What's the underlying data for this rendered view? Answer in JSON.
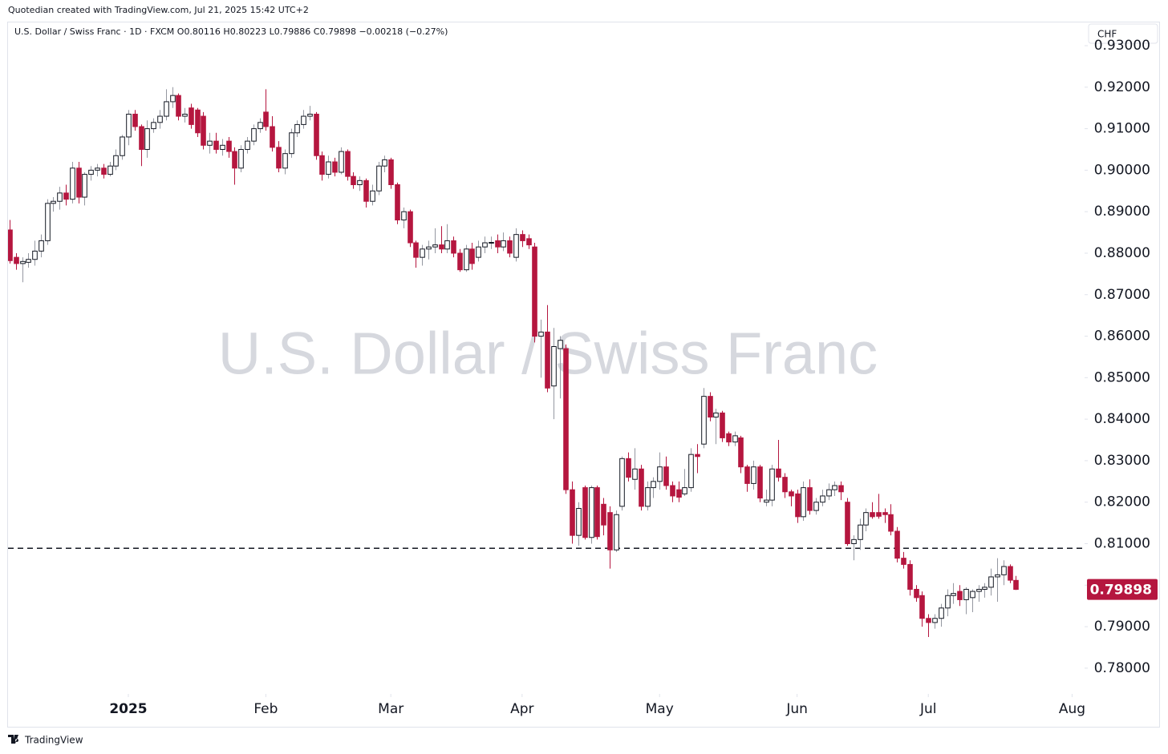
{
  "credit": "Quotedian created with TradingView.com, Jul 21, 2025 15:42 UTC+2",
  "footer": "TradingView",
  "chart_data": {
    "type": "candlestick",
    "title": "U.S. Dollar / Swiss Franc",
    "legend": "U.S. Dollar / Swiss Franc · 1D · FXCM  O0.80116  H0.80223  L0.79886  C0.79898  −0.00218 (−0.27%)",
    "currency": "CHF",
    "up_color": "#ffffff",
    "down_color": "#b5163f",
    "level": 0.8089,
    "candles": [
      [
        0.8856,
        0.888,
        0.8775,
        0.8782
      ],
      [
        0.879,
        0.88,
        0.876,
        0.8775
      ],
      [
        0.8775,
        0.879,
        0.873,
        0.878
      ],
      [
        0.8778,
        0.88,
        0.8765,
        0.8785
      ],
      [
        0.8785,
        0.883,
        0.877,
        0.8805
      ],
      [
        0.8805,
        0.8845,
        0.879,
        0.883
      ],
      [
        0.883,
        0.893,
        0.882,
        0.892
      ],
      [
        0.892,
        0.8935,
        0.89,
        0.8925
      ],
      [
        0.8925,
        0.896,
        0.8905,
        0.8945
      ],
      [
        0.8945,
        0.8965,
        0.8915,
        0.893
      ],
      [
        0.893,
        0.902,
        0.892,
        0.9005
      ],
      [
        0.9005,
        0.902,
        0.892,
        0.8935
      ],
      [
        0.8935,
        0.8995,
        0.8915,
        0.899
      ],
      [
        0.899,
        0.901,
        0.8975,
        0.9
      ],
      [
        0.9,
        0.9015,
        0.8985,
        0.9005
      ],
      [
        0.9005,
        0.9015,
        0.898,
        0.899
      ],
      [
        0.899,
        0.902,
        0.8985,
        0.901
      ],
      [
        0.901,
        0.905,
        0.9,
        0.9035
      ],
      [
        0.9035,
        0.9085,
        0.9025,
        0.908
      ],
      [
        0.908,
        0.9145,
        0.906,
        0.9135
      ],
      [
        0.9135,
        0.9145,
        0.9095,
        0.9105
      ],
      [
        0.9105,
        0.911,
        0.901,
        0.905
      ],
      [
        0.905,
        0.912,
        0.903,
        0.91
      ],
      [
        0.91,
        0.9125,
        0.909,
        0.9115
      ],
      [
        0.9115,
        0.9145,
        0.91,
        0.913
      ],
      [
        0.913,
        0.9195,
        0.912,
        0.9165
      ],
      [
        0.9165,
        0.92,
        0.915,
        0.918
      ],
      [
        0.918,
        0.9185,
        0.912,
        0.913
      ],
      [
        0.913,
        0.915,
        0.9115,
        0.9135
      ],
      [
        0.915,
        0.916,
        0.91,
        0.911
      ],
      [
        0.9145,
        0.915,
        0.908,
        0.909
      ],
      [
        0.913,
        0.914,
        0.905,
        0.906
      ],
      [
        0.906,
        0.909,
        0.904,
        0.907
      ],
      [
        0.907,
        0.909,
        0.904,
        0.905
      ],
      [
        0.905,
        0.9075,
        0.9035,
        0.906
      ],
      [
        0.907,
        0.908,
        0.903,
        0.9045
      ],
      [
        0.9045,
        0.9055,
        0.8965,
        0.9005
      ],
      [
        0.9005,
        0.906,
        0.8995,
        0.905
      ],
      [
        0.905,
        0.908,
        0.904,
        0.907
      ],
      [
        0.907,
        0.911,
        0.906,
        0.91
      ],
      [
        0.91,
        0.9125,
        0.909,
        0.9115
      ],
      [
        0.914,
        0.9195,
        0.9095,
        0.9105
      ],
      [
        0.9105,
        0.913,
        0.9045,
        0.9055
      ],
      [
        0.9055,
        0.907,
        0.8995,
        0.9005
      ],
      [
        0.9005,
        0.905,
        0.899,
        0.904
      ],
      [
        0.904,
        0.91,
        0.903,
        0.909
      ],
      [
        0.909,
        0.912,
        0.908,
        0.911
      ],
      [
        0.911,
        0.9145,
        0.91,
        0.913
      ],
      [
        0.913,
        0.9155,
        0.912,
        0.9135
      ],
      [
        0.9135,
        0.914,
        0.9025,
        0.9035
      ],
      [
        0.9035,
        0.9045,
        0.8975,
        0.899
      ],
      [
        0.899,
        0.9035,
        0.898,
        0.902
      ],
      [
        0.902,
        0.903,
        0.8985,
        0.8995
      ],
      [
        0.8995,
        0.9055,
        0.899,
        0.9045
      ],
      [
        0.9045,
        0.905,
        0.8975,
        0.8985
      ],
      [
        0.8985,
        0.8995,
        0.8955,
        0.8965
      ],
      [
        0.8965,
        0.8985,
        0.895,
        0.8975
      ],
      [
        0.8975,
        0.898,
        0.891,
        0.8925
      ],
      [
        0.8925,
        0.8965,
        0.8915,
        0.895
      ],
      [
        0.895,
        0.902,
        0.894,
        0.901
      ],
      [
        0.901,
        0.9035,
        0.8995,
        0.9025
      ],
      [
        0.9025,
        0.903,
        0.8955,
        0.8965
      ],
      [
        0.8965,
        0.897,
        0.887,
        0.888
      ],
      [
        0.888,
        0.891,
        0.886,
        0.89
      ],
      [
        0.89,
        0.8905,
        0.8815,
        0.8825
      ],
      [
        0.8825,
        0.883,
        0.8765,
        0.879
      ],
      [
        0.879,
        0.882,
        0.877,
        0.881
      ],
      [
        0.881,
        0.883,
        0.8785,
        0.8815
      ],
      [
        0.8815,
        0.886,
        0.88,
        0.882
      ],
      [
        0.882,
        0.8865,
        0.88,
        0.881
      ],
      [
        0.881,
        0.887,
        0.88,
        0.883
      ],
      [
        0.883,
        0.884,
        0.879,
        0.88
      ],
      [
        0.88,
        0.881,
        0.8755,
        0.876
      ],
      [
        0.876,
        0.882,
        0.8755,
        0.881
      ],
      [
        0.881,
        0.8825,
        0.876,
        0.8775
      ],
      [
        0.879,
        0.883,
        0.878,
        0.8815
      ],
      [
        0.8815,
        0.884,
        0.88,
        0.8825
      ],
      [
        0.8825,
        0.884,
        0.881,
        0.8826
      ],
      [
        0.883,
        0.8845,
        0.88,
        0.8815
      ],
      [
        0.8815,
        0.885,
        0.8805,
        0.883
      ],
      [
        0.883,
        0.884,
        0.879,
        0.88
      ],
      [
        0.879,
        0.886,
        0.878,
        0.8845
      ],
      [
        0.8845,
        0.8855,
        0.8815,
        0.883
      ],
      [
        0.8835,
        0.8845,
        0.881,
        0.882
      ],
      [
        0.8815,
        0.8825,
        0.8585,
        0.86
      ],
      [
        0.86,
        0.864,
        0.85,
        0.861
      ],
      [
        0.861,
        0.8675,
        0.8465,
        0.8475
      ],
      [
        0.848,
        0.862,
        0.84,
        0.8575
      ],
      [
        0.857,
        0.86,
        0.845,
        0.859
      ],
      [
        0.857,
        0.858,
        0.822,
        0.823
      ],
      [
        0.823,
        0.825,
        0.81,
        0.812
      ],
      [
        0.812,
        0.82,
        0.8095,
        0.8185
      ],
      [
        0.8235,
        0.824,
        0.811,
        0.8115
      ],
      [
        0.8115,
        0.824,
        0.81,
        0.8235
      ],
      [
        0.8235,
        0.824,
        0.811,
        0.8117
      ],
      [
        0.8195,
        0.821,
        0.812,
        0.8145
      ],
      [
        0.8175,
        0.819,
        0.804,
        0.8085
      ],
      [
        0.8085,
        0.818,
        0.808,
        0.817
      ],
      [
        0.819,
        0.831,
        0.818,
        0.8305
      ],
      [
        0.8305,
        0.832,
        0.825,
        0.826
      ],
      [
        0.8255,
        0.833,
        0.823,
        0.828
      ],
      [
        0.828,
        0.829,
        0.818,
        0.819
      ],
      [
        0.819,
        0.825,
        0.818,
        0.8235
      ],
      [
        0.8235,
        0.826,
        0.821,
        0.825
      ],
      [
        0.825,
        0.832,
        0.823,
        0.8285
      ],
      [
        0.8285,
        0.831,
        0.823,
        0.824
      ],
      [
        0.824,
        0.825,
        0.82,
        0.8215
      ],
      [
        0.823,
        0.825,
        0.82,
        0.8212
      ],
      [
        0.822,
        0.828,
        0.8215,
        0.8235
      ],
      [
        0.8235,
        0.833,
        0.8225,
        0.8315
      ],
      [
        0.8315,
        0.834,
        0.827,
        0.831
      ],
      [
        0.834,
        0.8475,
        0.833,
        0.8455
      ],
      [
        0.8455,
        0.8465,
        0.8395,
        0.8405
      ],
      [
        0.8405,
        0.8425,
        0.834,
        0.8415
      ],
      [
        0.8415,
        0.842,
        0.8345,
        0.8355
      ],
      [
        0.8365,
        0.837,
        0.8335,
        0.8345
      ],
      [
        0.8345,
        0.837,
        0.8335,
        0.836
      ],
      [
        0.8355,
        0.836,
        0.827,
        0.8285
      ],
      [
        0.8285,
        0.829,
        0.8225,
        0.8245
      ],
      [
        0.8245,
        0.83,
        0.823,
        0.8285
      ],
      [
        0.8285,
        0.829,
        0.82,
        0.821
      ],
      [
        0.82,
        0.823,
        0.819,
        0.8205
      ],
      [
        0.8205,
        0.829,
        0.819,
        0.828
      ],
      [
        0.828,
        0.835,
        0.825,
        0.826
      ],
      [
        0.826,
        0.827,
        0.821,
        0.8225
      ],
      [
        0.8225,
        0.823,
        0.819,
        0.8215
      ],
      [
        0.822,
        0.823,
        0.815,
        0.8165
      ],
      [
        0.8165,
        0.825,
        0.8155,
        0.8235
      ],
      [
        0.8235,
        0.8255,
        0.817,
        0.818
      ],
      [
        0.818,
        0.821,
        0.817,
        0.82
      ],
      [
        0.82,
        0.823,
        0.819,
        0.8215
      ],
      [
        0.8215,
        0.8245,
        0.8205,
        0.823
      ],
      [
        0.823,
        0.825,
        0.8215,
        0.824
      ],
      [
        0.824,
        0.825,
        0.8205,
        0.8225
      ],
      [
        0.82,
        0.821,
        0.8095,
        0.81
      ],
      [
        0.81,
        0.812,
        0.806,
        0.811
      ],
      [
        0.811,
        0.816,
        0.8085,
        0.8145
      ],
      [
        0.8145,
        0.8185,
        0.813,
        0.8175
      ],
      [
        0.8175,
        0.82,
        0.816,
        0.8165
      ],
      [
        0.8175,
        0.822,
        0.816,
        0.8166
      ],
      [
        0.8175,
        0.8185,
        0.815,
        0.817
      ],
      [
        0.817,
        0.8195,
        0.812,
        0.813
      ],
      [
        0.813,
        0.814,
        0.8055,
        0.8065
      ],
      [
        0.8065,
        0.808,
        0.804,
        0.805
      ],
      [
        0.805,
        0.806,
        0.7975,
        0.799
      ],
      [
        0.799,
        0.8,
        0.796,
        0.797
      ],
      [
        0.7975,
        0.7985,
        0.79,
        0.792
      ],
      [
        0.792,
        0.793,
        0.7875,
        0.791
      ],
      [
        0.791,
        0.793,
        0.7895,
        0.792
      ],
      [
        0.792,
        0.7955,
        0.79,
        0.7945
      ],
      [
        0.7945,
        0.799,
        0.7925,
        0.7975
      ],
      [
        0.7975,
        0.8005,
        0.7955,
        0.798
      ],
      [
        0.7985,
        0.8,
        0.795,
        0.7965
      ],
      [
        0.7965,
        0.7995,
        0.793,
        0.799
      ],
      [
        0.797,
        0.799,
        0.7935,
        0.7985
      ],
      [
        0.7985,
        0.8,
        0.796,
        0.799
      ],
      [
        0.799,
        0.8005,
        0.797,
        0.7995
      ],
      [
        0.7995,
        0.804,
        0.7975,
        0.802
      ],
      [
        0.802,
        0.8065,
        0.796,
        0.8025
      ],
      [
        0.8025,
        0.806,
        0.8,
        0.8045
      ],
      [
        0.8045,
        0.805,
        0.8005,
        0.8012
      ],
      [
        0.80116,
        0.80223,
        0.79886,
        0.79898
      ]
    ],
    "xlim": [
      -0.25,
      172
    ],
    "xticks": [
      {
        "value": 19,
        "label": "2025"
      },
      {
        "value": 41,
        "label": "Feb"
      },
      {
        "value": 61,
        "label": "Mar"
      },
      {
        "value": 82,
        "label": "Apr"
      },
      {
        "value": 104,
        "label": "May"
      },
      {
        "value": 126,
        "label": "Jun"
      },
      {
        "value": 147,
        "label": "Jul"
      },
      {
        "value": 170,
        "label": "Aug"
      }
    ],
    "ylim": [
      0.7738,
      0.9356
    ],
    "yticks": [
      {
        "value": 0.78,
        "label": "0.78000"
      },
      {
        "value": 0.79,
        "label": "0.79000"
      },
      {
        "value": 0.8,
        "label": "0.80000"
      },
      {
        "value": 0.81,
        "label": "0.81000"
      },
      {
        "value": 0.82,
        "label": "0.82000"
      },
      {
        "value": 0.83,
        "label": "0.83000"
      },
      {
        "value": 0.84,
        "label": "0.84000"
      },
      {
        "value": 0.85,
        "label": "0.85000"
      },
      {
        "value": 0.86,
        "label": "0.86000"
      },
      {
        "value": 0.87,
        "label": "0.87000"
      },
      {
        "value": 0.88,
        "label": "0.88000"
      },
      {
        "value": 0.89,
        "label": "0.89000"
      },
      {
        "value": 0.9,
        "label": "0.90000"
      },
      {
        "value": 0.91,
        "label": "0.91000"
      },
      {
        "value": 0.92,
        "label": "0.92000"
      },
      {
        "value": 0.93,
        "label": "0.93000"
      }
    ]
  }
}
